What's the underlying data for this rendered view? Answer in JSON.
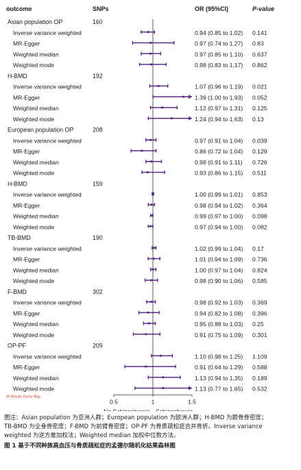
{
  "chart_data": {
    "type": "forest",
    "header": {
      "outcome": "outcome",
      "snps": "SNPs",
      "or": "OR (95%CI)",
      "p": "P-value"
    },
    "x_axis": {
      "ticks": [
        "0.5",
        "1",
        "1.5"
      ],
      "tick_values": [
        0.5,
        1.0,
        1.5
      ],
      "range": [
        0.5,
        1.5
      ],
      "left_label": "No Schizophrenia",
      "right_label": "Schizophrenia"
    },
    "note": "IR Results Forest Map.",
    "accent_color": "#5b2a86",
    "groups": [
      {
        "name": "Asian population OP",
        "snps": "160",
        "rows": [
          {
            "method": "Inverse variance weighted",
            "or": 0.94,
            "lo": 0.85,
            "hi": 1.02,
            "ci_text": "0.94 (0.85 to 1.02)",
            "p": "0.141"
          },
          {
            "method": "MR-Egger",
            "or": 0.97,
            "lo": 0.74,
            "hi": 1.27,
            "ci_text": "0.97 (0.74 to 1.27)",
            "p": "0.83"
          },
          {
            "method": "Weighted median",
            "or": 0.97,
            "lo": 0.85,
            "hi": 1.1,
            "ci_text": "0.97 (0.85 to 1.10)",
            "p": "0.637"
          },
          {
            "method": "Weighted mode",
            "or": 0.98,
            "lo": 0.83,
            "hi": 1.17,
            "ci_text": "0.98 (0.83 to 1.17)",
            "p": "0.862"
          }
        ]
      },
      {
        "name": "H-BMD",
        "snps": "192",
        "rows": [
          {
            "method": "Inverse variance weighted",
            "or": 1.07,
            "lo": 0.96,
            "hi": 1.19,
            "ci_text": "1.07 (0.96 to 1.19)",
            "p": "0.021"
          },
          {
            "method": "MR-Egger",
            "or": 1.39,
            "lo": 1.0,
            "hi": 1.93,
            "ci_text": "1.39 (1.00 to 1.93)",
            "p": "0.052"
          },
          {
            "method": "Weighted median",
            "or": 1.12,
            "lo": 0.97,
            "hi": 1.31,
            "ci_text": "1.12 (0.97 to 1.31)",
            "p": "0.125"
          },
          {
            "method": "Weighted mode",
            "or": 1.24,
            "lo": 0.94,
            "hi": 1.63,
            "ci_text": "1.24 (0.94 to 1.63)",
            "p": "0.13"
          }
        ]
      },
      {
        "name": "European population OP",
        "snps": "208",
        "rows": [
          {
            "method": "Inverse variance weighted",
            "or": 0.97,
            "lo": 0.91,
            "hi": 1.04,
            "ci_text": "0.97 (0.91 to 1.04)",
            "p": "0.039"
          },
          {
            "method": "MR-Egger",
            "or": 0.86,
            "lo": 0.72,
            "hi": 1.04,
            "ci_text": "0.86 (0.72 to 1.04)",
            "p": "0.129"
          },
          {
            "method": "Weighted median",
            "or": 0.98,
            "lo": 0.91,
            "hi": 1.11,
            "ci_text": "0.98 (0.91 to 1.11)",
            "p": "0.726"
          },
          {
            "method": "Weighted mode",
            "or": 0.93,
            "lo": 0.86,
            "hi": 1.15,
            "ci_text": "0.93 (0.86 to 1.15)",
            "p": "0.511"
          }
        ]
      },
      {
        "name": "H-BMD",
        "snps": "159",
        "rows": [
          {
            "method": "Inverse variance weighted",
            "or": 1.0,
            "lo": 0.99,
            "hi": 1.01,
            "ci_text": "1.00 (0.99 to 1.01)",
            "p": "0.853"
          },
          {
            "method": "MR-Egger",
            "or": 0.98,
            "lo": 0.94,
            "hi": 1.02,
            "ci_text": "0.98 (0.94 to 1.02)",
            "p": "0.364"
          },
          {
            "method": "Weighted median",
            "or": 0.99,
            "lo": 0.97,
            "hi": 1.0,
            "ci_text": "0.99 (0.97 to 1.00)",
            "p": "0.098"
          },
          {
            "method": "Weighted mode",
            "or": 0.97,
            "lo": 0.94,
            "hi": 1.0,
            "ci_text": "0.97 (0.94 to 1.00)",
            "p": "0.082"
          }
        ]
      },
      {
        "name": "TB-BMD",
        "snps": "190",
        "rows": [
          {
            "method": "Inverse variance weighted",
            "or": 1.02,
            "lo": 0.99,
            "hi": 1.04,
            "ci_text": "1.02 (0.99 to 1.04)",
            "p": "0.17"
          },
          {
            "method": "MR-Egger",
            "or": 1.01,
            "lo": 0.94,
            "hi": 1.09,
            "ci_text": "1.01 (0.94 to 1.09)",
            "p": "0.736"
          },
          {
            "method": "Weighted median",
            "or": 1.0,
            "lo": 0.97,
            "hi": 1.04,
            "ci_text": "1.00 (0.97 to 1.04)",
            "p": "0.824"
          },
          {
            "method": "Weighted mode",
            "or": 0.98,
            "lo": 0.9,
            "hi": 1.06,
            "ci_text": "0.98 (0.90 to 1.06)",
            "p": "0.585"
          }
        ]
      },
      {
        "name": "F-BMD",
        "snps": "302",
        "rows": [
          {
            "method": "Inverse variance weighted",
            "or": 0.98,
            "lo": 0.92,
            "hi": 1.03,
            "ci_text": "0.98 (0.92 to 1.03)",
            "p": "0.369"
          },
          {
            "method": "MR-Egger",
            "or": 0.94,
            "lo": 0.82,
            "hi": 1.08,
            "ci_text": "0.94 (0.82 to 1.08)",
            "p": "0.396"
          },
          {
            "method": "Weighted median",
            "or": 0.95,
            "lo": 0.88,
            "hi": 1.03,
            "ci_text": "0.95 (0.88 to 1.03)",
            "p": "0.25"
          },
          {
            "method": "Weighted mode",
            "or": 0.91,
            "lo": 0.75,
            "hi": 1.09,
            "ci_text": "0.91 (0.75 to 1.09)",
            "p": "0.301"
          }
        ]
      },
      {
        "name": "OP-PF",
        "snps": "209",
        "rows": [
          {
            "method": "Inverse variance weighted",
            "or": 1.1,
            "lo": 0.98,
            "hi": 1.25,
            "ci_text": "1.10 (0.98 to 1.25)",
            "p": "1.109"
          },
          {
            "method": "MR-Egger",
            "or": 0.91,
            "lo": 0.64,
            "hi": 1.29,
            "ci_text": "0.91 (0.64 to 1.29)",
            "p": "0.588"
          },
          {
            "method": "Weighted median",
            "or": 1.13,
            "lo": 0.94,
            "hi": 1.35,
            "ci_text": "1.13 (0.94 to 1.35)",
            "p": "0.189"
          },
          {
            "method": "Weighted mode",
            "or": 1.13,
            "lo": 0.77,
            "hi": 1.65,
            "ci_text": "1.13 (0.77 to 1.65)",
            "p": "0.532"
          }
        ]
      }
    ]
  },
  "caption": {
    "line1": "图注：Asian population 为亚洲人群；European population 为欧洲人群；H-BMD 为跟骨骨密度；",
    "line2": "TB-BMD 为全身骨密度；F-BMD 为前臂骨密度；OP-PF 为骨质疏松症合并骨折。Inverse variance",
    "line3": "weighted 为逆方差加权法；Weighted median 加权中位数方法。",
    "title": "图 1  基于不同种族高血压与骨质疏松症的孟德尔随机化结果森林图"
  }
}
